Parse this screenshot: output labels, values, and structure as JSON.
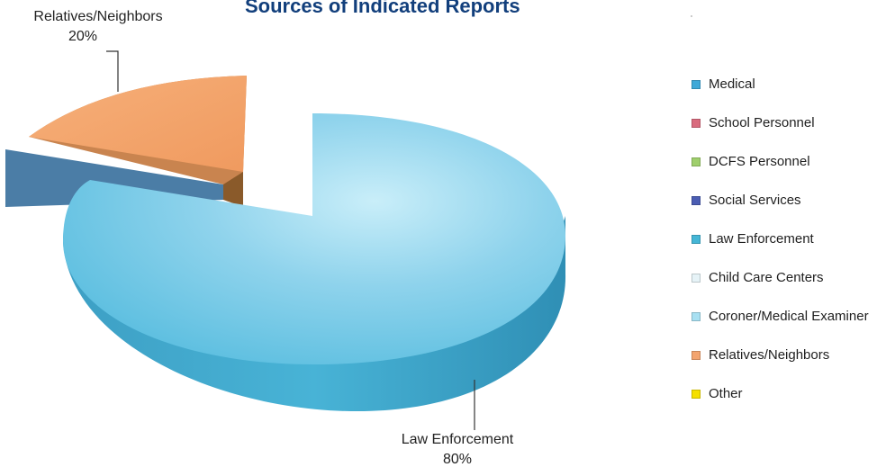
{
  "chart_data": {
    "type": "pie",
    "title": "Sources of Indicated Reports",
    "slices": [
      {
        "name": "Medical",
        "value": 0,
        "color": "#3fa9d8"
      },
      {
        "name": "School Personnel",
        "value": 0,
        "color": "#d96b7e"
      },
      {
        "name": "DCFS Personnel",
        "value": 0,
        "color": "#9fcf6c"
      },
      {
        "name": "Social Services",
        "value": 0,
        "color": "#4b5db3"
      },
      {
        "name": "Law Enforcement",
        "value": 80,
        "label": "80%",
        "color": "#45b6d6"
      },
      {
        "name": "Child Care Centers",
        "value": 0,
        "color": "#e6f3f7"
      },
      {
        "name": "Coroner/Medical Examiner",
        "value": 0,
        "color": "#a8e0f2"
      },
      {
        "name": "Relatives/Neighbors",
        "value": 20,
        "label": "20%",
        "color": "#f3a46f"
      },
      {
        "name": "Other",
        "value": 0,
        "color": "#f5e000"
      }
    ],
    "legend_position": "right",
    "style": "3d-exploded"
  },
  "labels": {
    "law_enforcement": {
      "name": "Law Enforcement",
      "pct": "80%"
    },
    "relatives": {
      "name": "Relatives/Neighbors",
      "pct": "20%"
    }
  }
}
